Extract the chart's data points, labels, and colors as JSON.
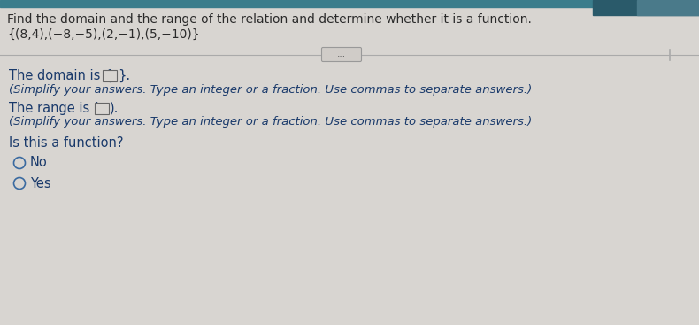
{
  "title_line1": "Find the domain and the range of the relation and determine whether it is a function.",
  "title_line2": "{(8,4),(−8,−5),(2,−1),(5,−10)}",
  "domain_hint": "(Simplify your answers. Type an integer or a fraction. Use commas to separate answers.)",
  "range_hint": "(Simplify your answers. Type an integer or a fraction. Use commas to separate answers.)",
  "function_question": "Is this a function?",
  "option_no": "No",
  "option_yes": "Yes",
  "bg_teal": "#3a7d8c",
  "bg_main": "#d8d5d1",
  "text_color_dark": "#2a2a2a",
  "text_color_blue": "#1a3a6b",
  "dots_label": "...",
  "title_fontsize": 10.0,
  "body_fontsize": 10.5,
  "hint_fontsize": 9.5
}
